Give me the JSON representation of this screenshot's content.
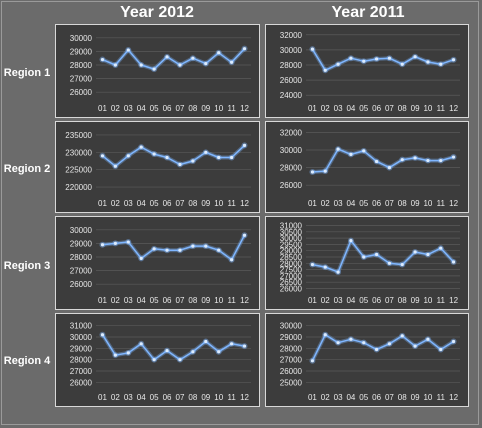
{
  "column_titles": [
    "Year 2012",
    "Year 2011"
  ],
  "row_labels": [
    "Region 1",
    "Region 2",
    "Region 3",
    "Region 4"
  ],
  "line_color": "#7fb6ff",
  "panel_background": "#3c3c3c",
  "chart_data": [
    {
      "type": "line",
      "region": "Region 1",
      "year": "Year 2012",
      "categories": [
        "01",
        "02",
        "03",
        "04",
        "05",
        "06",
        "07",
        "08",
        "09",
        "10",
        "11",
        "12"
      ],
      "y_ticks": [
        26000,
        27000,
        28000,
        29000,
        30000
      ],
      "ylim": [
        25500,
        30500
      ],
      "values": [
        28400,
        28000,
        29100,
        28000,
        27700,
        28600,
        28000,
        28500,
        28100,
        28900,
        28200,
        29200
      ]
    },
    {
      "type": "line",
      "region": "Region 1",
      "year": "Year 2011",
      "categories": [
        "01",
        "02",
        "03",
        "04",
        "05",
        "06",
        "07",
        "08",
        "09",
        "10",
        "11",
        "12"
      ],
      "y_ticks": [
        24000,
        26000,
        28000,
        30000,
        32000
      ],
      "ylim": [
        23500,
        32500
      ],
      "values": [
        30100,
        27300,
        28100,
        28900,
        28500,
        28800,
        28900,
        28100,
        29100,
        28400,
        28100,
        28700
      ]
    },
    {
      "type": "line",
      "region": "Region 2",
      "year": "Year 2012",
      "categories": [
        "01",
        "02",
        "03",
        "04",
        "05",
        "06",
        "07",
        "08",
        "09",
        "10",
        "11",
        "12"
      ],
      "y_ticks": [
        220000,
        225000,
        230000,
        235000
      ],
      "ylim": [
        218000,
        237000
      ],
      "values": [
        229000,
        226000,
        229000,
        231500,
        229500,
        228500,
        226500,
        227500,
        230000,
        228500,
        228500,
        232000
      ]
    },
    {
      "type": "line",
      "region": "Region 2",
      "year": "Year 2011",
      "categories": [
        "01",
        "02",
        "03",
        "04",
        "05",
        "06",
        "07",
        "08",
        "09",
        "10",
        "11",
        "12"
      ],
      "y_ticks": [
        26000,
        28000,
        30000,
        32000
      ],
      "ylim": [
        25000,
        32500
      ],
      "values": [
        27500,
        27600,
        30100,
        29500,
        29900,
        28700,
        28000,
        28900,
        29100,
        28800,
        28800,
        29200
      ]
    },
    {
      "type": "line",
      "region": "Region 3",
      "year": "Year 2012",
      "categories": [
        "01",
        "02",
        "03",
        "04",
        "05",
        "06",
        "07",
        "08",
        "09",
        "10",
        "11",
        "12"
      ],
      "y_ticks": [
        26000,
        27000,
        28000,
        29000,
        30000
      ],
      "ylim": [
        25500,
        30500
      ],
      "values": [
        28900,
        29000,
        29100,
        27900,
        28600,
        28500,
        28500,
        28800,
        28800,
        28500,
        27800,
        29600
      ]
    },
    {
      "type": "line",
      "region": "Region 3",
      "year": "Year 2011",
      "categories": [
        "01",
        "02",
        "03",
        "04",
        "05",
        "06",
        "07",
        "08",
        "09",
        "10",
        "11",
        "12"
      ],
      "y_ticks": [
        26000,
        26500,
        27000,
        27500,
        28000,
        28500,
        29000,
        29500,
        30000,
        30500,
        31000
      ],
      "ylim": [
        25800,
        31200
      ],
      "values": [
        27900,
        27700,
        27300,
        29800,
        28500,
        28700,
        28000,
        27900,
        28900,
        28700,
        29200,
        28100
      ]
    },
    {
      "type": "line",
      "region": "Region 4",
      "year": "Year 2012",
      "categories": [
        "01",
        "02",
        "03",
        "04",
        "05",
        "06",
        "07",
        "08",
        "09",
        "10",
        "11",
        "12"
      ],
      "y_ticks": [
        26000,
        27000,
        28000,
        29000,
        30000,
        31000
      ],
      "ylim": [
        25500,
        31500
      ],
      "values": [
        30200,
        28400,
        28600,
        29400,
        28000,
        28800,
        28000,
        28700,
        29600,
        28700,
        29400,
        29200
      ]
    },
    {
      "type": "line",
      "region": "Region 4",
      "year": "Year 2011",
      "categories": [
        "01",
        "02",
        "03",
        "04",
        "05",
        "06",
        "07",
        "08",
        "09",
        "10",
        "11",
        "12"
      ],
      "y_ticks": [
        25000,
        26000,
        27000,
        28000,
        29000,
        30000
      ],
      "ylim": [
        24500,
        30500
      ],
      "values": [
        26900,
        29200,
        28500,
        28800,
        28500,
        27900,
        28400,
        29100,
        28200,
        28800,
        27900,
        28600
      ]
    }
  ]
}
